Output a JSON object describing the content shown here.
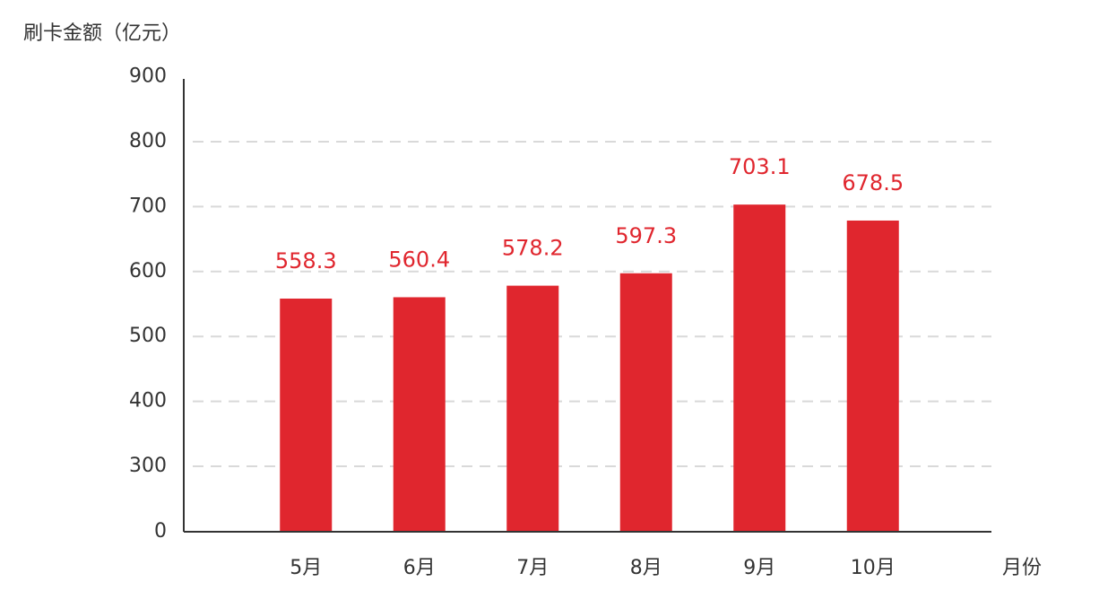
{
  "chart_data": {
    "type": "bar",
    "title": "",
    "ylabel": "刷卡金额（亿元）",
    "xlabel": "月份",
    "categories": [
      "5月",
      "6月",
      "7月",
      "8月",
      "9月",
      "10月"
    ],
    "values": [
      558.3,
      560.4,
      578.2,
      597.3,
      703.1,
      678.5
    ],
    "ylim": [
      0,
      900
    ],
    "y_ticks_display": [
      "0",
      "300",
      "400",
      "500",
      "600",
      "700",
      "800",
      "900"
    ],
    "grid": true,
    "legend": "none",
    "colors": {
      "bar": "#e0262e",
      "label": "#e0262e",
      "axis": "#333333",
      "grid": "#d9d9d9"
    }
  }
}
